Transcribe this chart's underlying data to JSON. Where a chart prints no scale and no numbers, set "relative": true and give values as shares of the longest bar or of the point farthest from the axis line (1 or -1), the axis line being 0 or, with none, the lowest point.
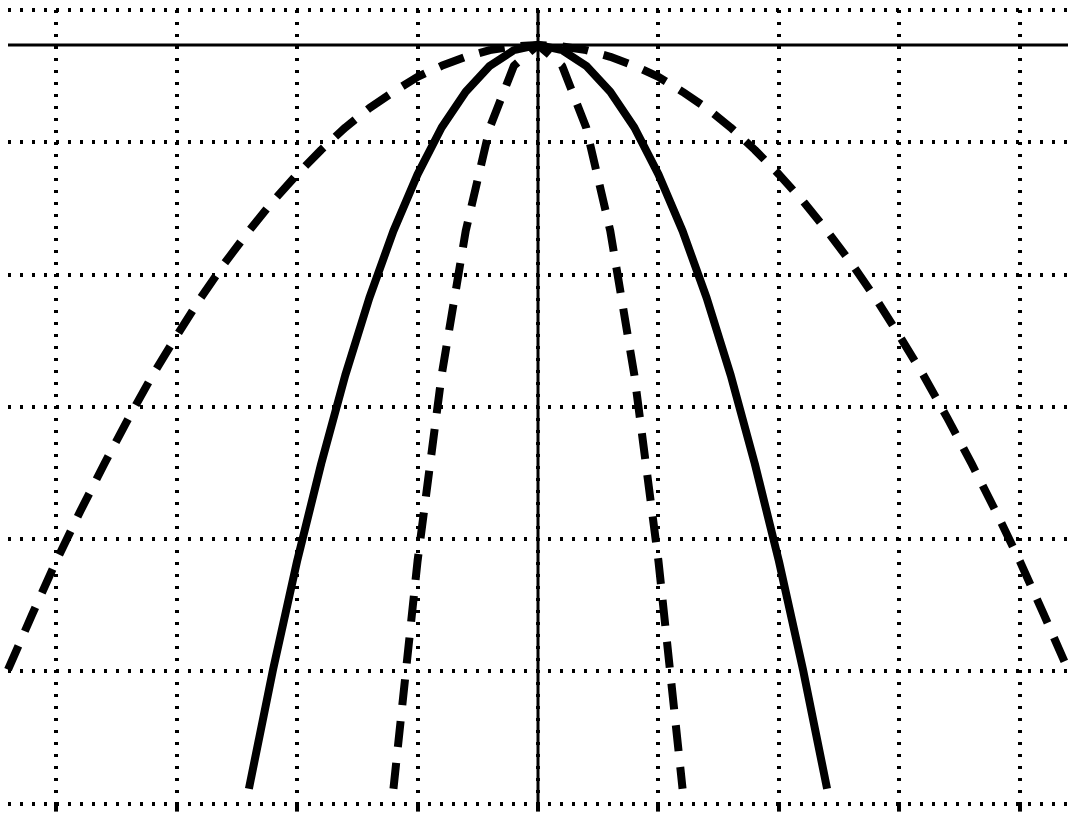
{
  "chart_data": {
    "type": "line",
    "relative": true,
    "grid": true,
    "legend": false,
    "marker": "none",
    "categories": [
      null,
      null,
      null,
      null,
      null,
      null,
      null,
      null,
      null,
      null,
      null,
      null,
      null,
      null,
      null,
      null,
      null,
      null,
      null,
      null,
      null,
      null,
      null,
      null,
      null,
      null,
      null,
      null,
      null,
      null,
      null,
      null,
      null,
      null,
      null,
      null,
      null,
      null,
      null,
      null,
      null,
      null,
      null,
      null,
      null
    ],
    "series": [
      {
        "color": "#000000",
        "line_style": "dashed",
        "values": [
          -0.84,
          -0.766,
          -0.694,
          -0.627,
          -0.563,
          -0.502,
          -0.444,
          -0.391,
          -0.34,
          -0.293,
          -0.25,
          -0.21,
          -0.174,
          -0.141,
          -0.111,
          -0.085,
          -0.063,
          -0.043,
          -0.028,
          -0.016,
          -0.007,
          -0.002,
          0,
          -0.002,
          -0.007,
          -0.016,
          -0.028,
          -0.043,
          -0.063,
          -0.085,
          -0.111,
          -0.141,
          -0.174,
          -0.21,
          -0.25,
          -0.293,
          -0.34,
          -0.391,
          -0.444,
          -0.502,
          -0.563,
          -0.627,
          -0.694,
          -0.766,
          -0.84
        ]
      },
      {
        "color": "#000000",
        "line_style": "solid",
        "values": [
          null,
          null,
          null,
          null,
          null,
          null,
          null,
          null,
          null,
          null,
          -1,
          -0.84,
          -0.694,
          -0.563,
          -0.444,
          -0.34,
          -0.25,
          -0.174,
          -0.111,
          -0.063,
          -0.028,
          -0.007,
          0,
          -0.007,
          -0.028,
          -0.063,
          -0.111,
          -0.174,
          -0.25,
          -0.34,
          -0.444,
          -0.563,
          -0.694,
          -0.84,
          -1,
          null,
          null,
          null,
          null,
          null,
          null,
          null,
          null,
          null,
          null
        ]
      },
      {
        "color": "#000000",
        "line_style": "dashed",
        "values": [
          null,
          null,
          null,
          null,
          null,
          null,
          null,
          null,
          null,
          null,
          null,
          null,
          null,
          null,
          null,
          null,
          -1,
          -0.694,
          -0.444,
          -0.25,
          -0.111,
          -0.028,
          0,
          -0.028,
          -0.111,
          -0.25,
          -0.444,
          -0.694,
          -1,
          null,
          null,
          null,
          null,
          null,
          null,
          null,
          null,
          null,
          null,
          null,
          null,
          null,
          null,
          null,
          null
        ]
      }
    ]
  }
}
